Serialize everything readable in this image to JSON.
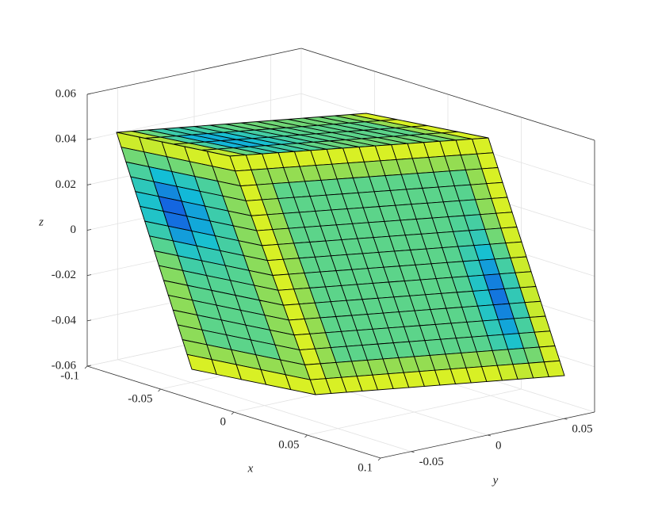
{
  "chart_data": {
    "type": "surface",
    "xlabel": "x",
    "ylabel": "y",
    "zlabel": "z",
    "xlim": [
      -0.1,
      0.1
    ],
    "ylim": [
      -0.07,
      0.07
    ],
    "zlim": [
      -0.06,
      0.06
    ],
    "xticks": [
      -0.1,
      -0.05,
      0,
      0.05,
      0.1
    ],
    "yticks": [
      -0.05,
      0,
      0.05
    ],
    "zticks": [
      -0.06,
      -0.04,
      -0.02,
      0,
      0.02,
      0.04,
      0.06
    ],
    "grid": true
  }
}
